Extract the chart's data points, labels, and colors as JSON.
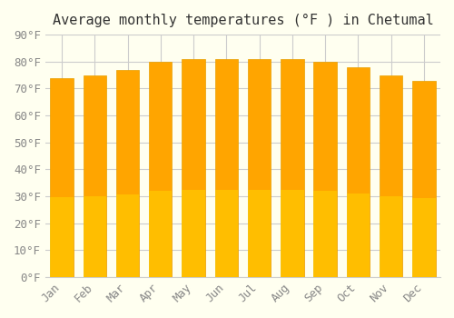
{
  "title": "Average monthly temperatures (°F ) in Chetumal",
  "months": [
    "Jan",
    "Feb",
    "Mar",
    "Apr",
    "May",
    "Jun",
    "Jul",
    "Aug",
    "Sep",
    "Oct",
    "Nov",
    "Dec"
  ],
  "values": [
    74,
    75,
    77,
    80,
    81,
    81,
    81,
    81,
    80,
    78,
    75,
    73
  ],
  "bar_color_top": "#FFA500",
  "bar_color_bottom": "#FFD700",
  "ylim": [
    0,
    90
  ],
  "yticks": [
    0,
    10,
    20,
    30,
    40,
    50,
    60,
    70,
    80,
    90
  ],
  "ytick_labels": [
    "0°F",
    "10°F",
    "20°F",
    "30°F",
    "40°F",
    "50°F",
    "60°F",
    "70°F",
    "80°F",
    "90°F"
  ],
  "background_color": "#FFFFF0",
  "grid_color": "#CCCCCC",
  "bar_edge_color": "#E8A000",
  "title_fontsize": 11,
  "tick_fontsize": 9,
  "font_family": "monospace"
}
